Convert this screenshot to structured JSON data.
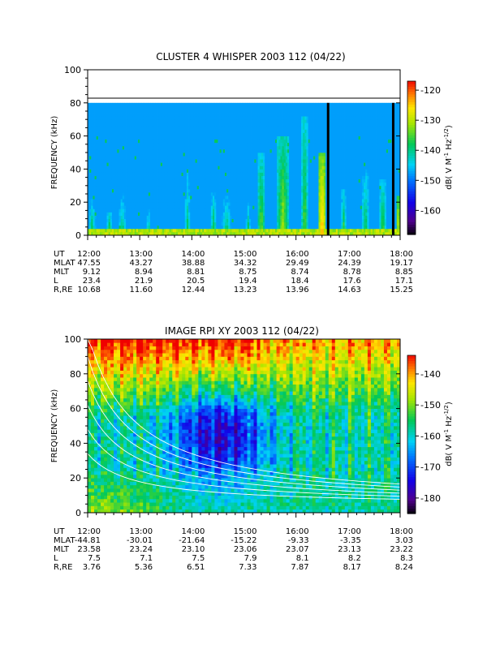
{
  "chart_data": [
    {
      "type": "heatmap",
      "title": "CLUSTER 4 WHISPER 2003 112 (04/22)",
      "ylabel": "FREQUENCY (kHz)",
      "ylim": [
        0,
        100
      ],
      "yticks": [
        "0",
        "20",
        "40",
        "60",
        "80",
        "100"
      ],
      "data_ceiling_khz": 80,
      "x_time_range": [
        "12:00",
        "18:00"
      ],
      "colorbar": {
        "label": "dB( V M⁻¹ Hz⁻¹ᐟ²)",
        "label_parts": [
          "dB( V M",
          "-1",
          " Hz",
          "-1/2",
          ")"
        ],
        "range": [
          -168,
          -117
        ],
        "ticks": [
          "-120",
          "-130",
          "-140",
          "-150",
          "-160"
        ]
      },
      "background_level_db": -148,
      "gaps_ut": [
        "16:37",
        "17:52"
      ],
      "emission_bursts": [
        {
          "t": "12:05",
          "width_min": 10,
          "top_khz": 22,
          "level_db": -136
        },
        {
          "t": "12:25",
          "width_min": 8,
          "top_khz": 14,
          "level_db": -134
        },
        {
          "t": "12:40",
          "width_min": 12,
          "top_khz": 26,
          "level_db": -137
        },
        {
          "t": "13:10",
          "width_min": 6,
          "top_khz": 16,
          "level_db": -136
        },
        {
          "t": "13:55",
          "width_min": 10,
          "top_khz": 48,
          "level_db": -138
        },
        {
          "t": "14:25",
          "width_min": 8,
          "top_khz": 26,
          "level_db": -135
        },
        {
          "t": "14:40",
          "width_min": 12,
          "top_khz": 24,
          "level_db": -136
        },
        {
          "t": "15:05",
          "width_min": 6,
          "top_khz": 20,
          "level_db": -136
        },
        {
          "t": "15:20",
          "width_min": 10,
          "top_khz": 50,
          "level_db": -132
        },
        {
          "t": "15:45",
          "width_min": 14,
          "top_khz": 60,
          "level_db": -130
        },
        {
          "t": "16:10",
          "width_min": 8,
          "top_khz": 72,
          "level_db": -132
        },
        {
          "t": "16:30",
          "width_min": 10,
          "top_khz": 50,
          "level_db": -122
        },
        {
          "t": "16:55",
          "width_min": 6,
          "top_khz": 28,
          "level_db": -134
        },
        {
          "t": "17:20",
          "width_min": 10,
          "top_khz": 40,
          "level_db": -135
        },
        {
          "t": "17:40",
          "width_min": 8,
          "top_khz": 35,
          "level_db": -133
        },
        {
          "t": "17:58",
          "width_min": 4,
          "top_khz": 25,
          "level_db": -124
        }
      ],
      "ephemeris": {
        "rows": [
          {
            "label": "UT",
            "values": [
              "12:00",
              "13:00",
              "14:00",
              "15:00",
              "16:00",
              "17:00",
              "18:00"
            ]
          },
          {
            "label": "MLAT",
            "values": [
              "47.55",
              "43.27",
              "38.88",
              "34.32",
              "29.49",
              "24.39",
              "19.17"
            ]
          },
          {
            "label": "MLT",
            "values": [
              "9.12",
              "8.94",
              "8.81",
              "8.75",
              "8.74",
              "8.78",
              "8.85"
            ]
          },
          {
            "label": "L",
            "values": [
              "23.4",
              "21.9",
              "20.5",
              "19.4",
              "18.4",
              "17.6",
              "17.1"
            ]
          },
          {
            "label": "R,RE",
            "values": [
              "10.68",
              "11.60",
              "12.44",
              "13.23",
              "13.96",
              "14.63",
              "15.25"
            ]
          }
        ]
      }
    },
    {
      "type": "heatmap",
      "title": "IMAGE RPI XY 2003 112 (04/22)",
      "ylabel": "FREQUENCY (kHz)",
      "ylim": [
        0,
        100
      ],
      "yticks": [
        "0",
        "20",
        "40",
        "60",
        "80",
        "100"
      ],
      "x_time_range": [
        "12:00",
        "18:00"
      ],
      "colorbar": {
        "label": "dB( V M⁻¹ Hz⁻¹ᐟ²)",
        "label_parts": [
          "dB( V M",
          "-1",
          " Hz",
          "-1/2",
          ")"
        ],
        "range": [
          -185,
          -134
        ],
        "ticks": [
          "-140",
          "-150",
          "-160",
          "-170",
          "-180"
        ]
      },
      "overlay_curves_white": 6,
      "ephemeris": {
        "rows": [
          {
            "label": "UT",
            "values": [
              "12:00",
              "13:00",
              "14:00",
              "15:00",
              "16:00",
              "17:00",
              "18:00"
            ]
          },
          {
            "label": "MLAT",
            "values": [
              "-44.81",
              "-30.01",
              "-21.64",
              "-15.22",
              "-9.33",
              "-3.35",
              "3.03"
            ]
          },
          {
            "label": "MLT",
            "values": [
              "23.58",
              "23.24",
              "23.10",
              "23.06",
              "23.07",
              "23.13",
              "23.22"
            ]
          },
          {
            "label": "L",
            "values": [
              "7.5",
              "7.1",
              "7.5",
              "7.9",
              "8.1",
              "8.2",
              "8.3"
            ]
          },
          {
            "label": "R,RE",
            "values": [
              "3.76",
              "5.36",
              "6.51",
              "7.33",
              "7.87",
              "8.17",
              "8.24"
            ]
          }
        ]
      }
    }
  ]
}
